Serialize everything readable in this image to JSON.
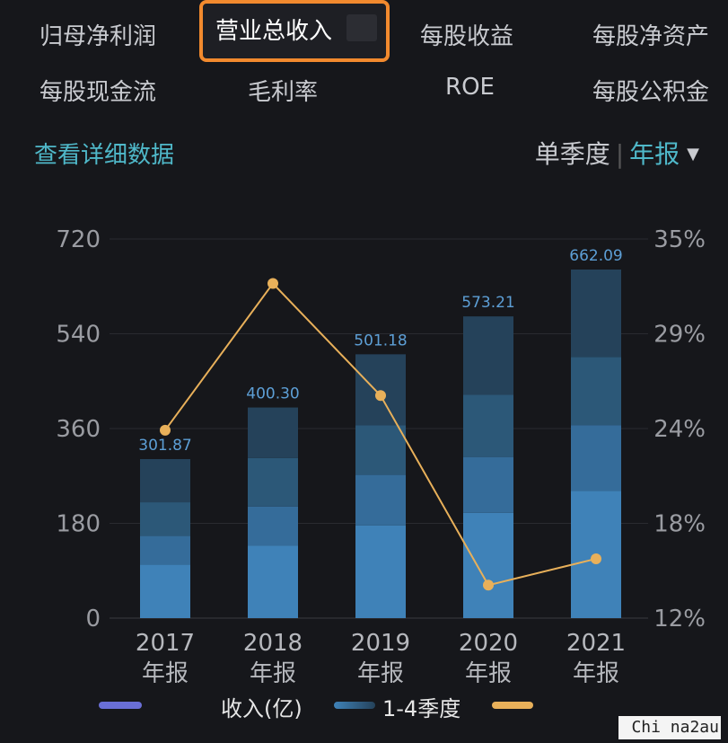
{
  "tabs": [
    {
      "label": "归母净利润"
    },
    {
      "label": "营业总收入"
    },
    {
      "label": "每股收益"
    },
    {
      "label": "每股净资产"
    },
    {
      "label": "每股现金流"
    },
    {
      "label": "毛利率"
    },
    {
      "label": "ROE"
    },
    {
      "label": "每股公积金"
    }
  ],
  "detail_link": "查看详细数据",
  "period": {
    "single_quarter": "单季度",
    "annual": "年报"
  },
  "legend": {
    "revenue": "收入(亿)",
    "quarters": "1-4季度"
  },
  "watermark": "Chi na2au",
  "colors": {
    "accent_orange": "#f28a2e",
    "accent_teal": "#4fb8c9",
    "line": "#e8b05a",
    "bar_q1": "#3f82b8",
    "bar_q2": "#356c9a",
    "bar_q3": "#2c5878",
    "bar_q4": "#25425a",
    "label_blue": "#5d9fd6"
  },
  "chart_data": {
    "type": "bar",
    "categories": [
      "2017\n年报",
      "2018\n年报",
      "2019\n年报",
      "2020\n年报",
      "2021\n年报"
    ],
    "totals": [
      301.87,
      400.3,
      501.18,
      573.21,
      662.09
    ],
    "total_labels": [
      "301.87",
      "400.30",
      "501.18",
      "573.21",
      "662.09"
    ],
    "quarters": [
      [
        102,
        54,
        64,
        82
      ],
      [
        138,
        74,
        92,
        96
      ],
      [
        176,
        96,
        94,
        135
      ],
      [
        200,
        106,
        118,
        149
      ],
      [
        242,
        124,
        130,
        166
      ]
    ],
    "line": {
      "type": "line",
      "values": [
        23.4,
        32.3,
        25.5,
        14.0,
        15.6
      ]
    },
    "y_left": {
      "ticks": [
        "720",
        "540",
        "360",
        "180",
        "0"
      ],
      "range": [
        0,
        720
      ]
    },
    "y_right": {
      "ticks": [
        "35%",
        "29%",
        "24%",
        "18%",
        "12%"
      ],
      "range": [
        12,
        35
      ]
    },
    "grid": true
  }
}
